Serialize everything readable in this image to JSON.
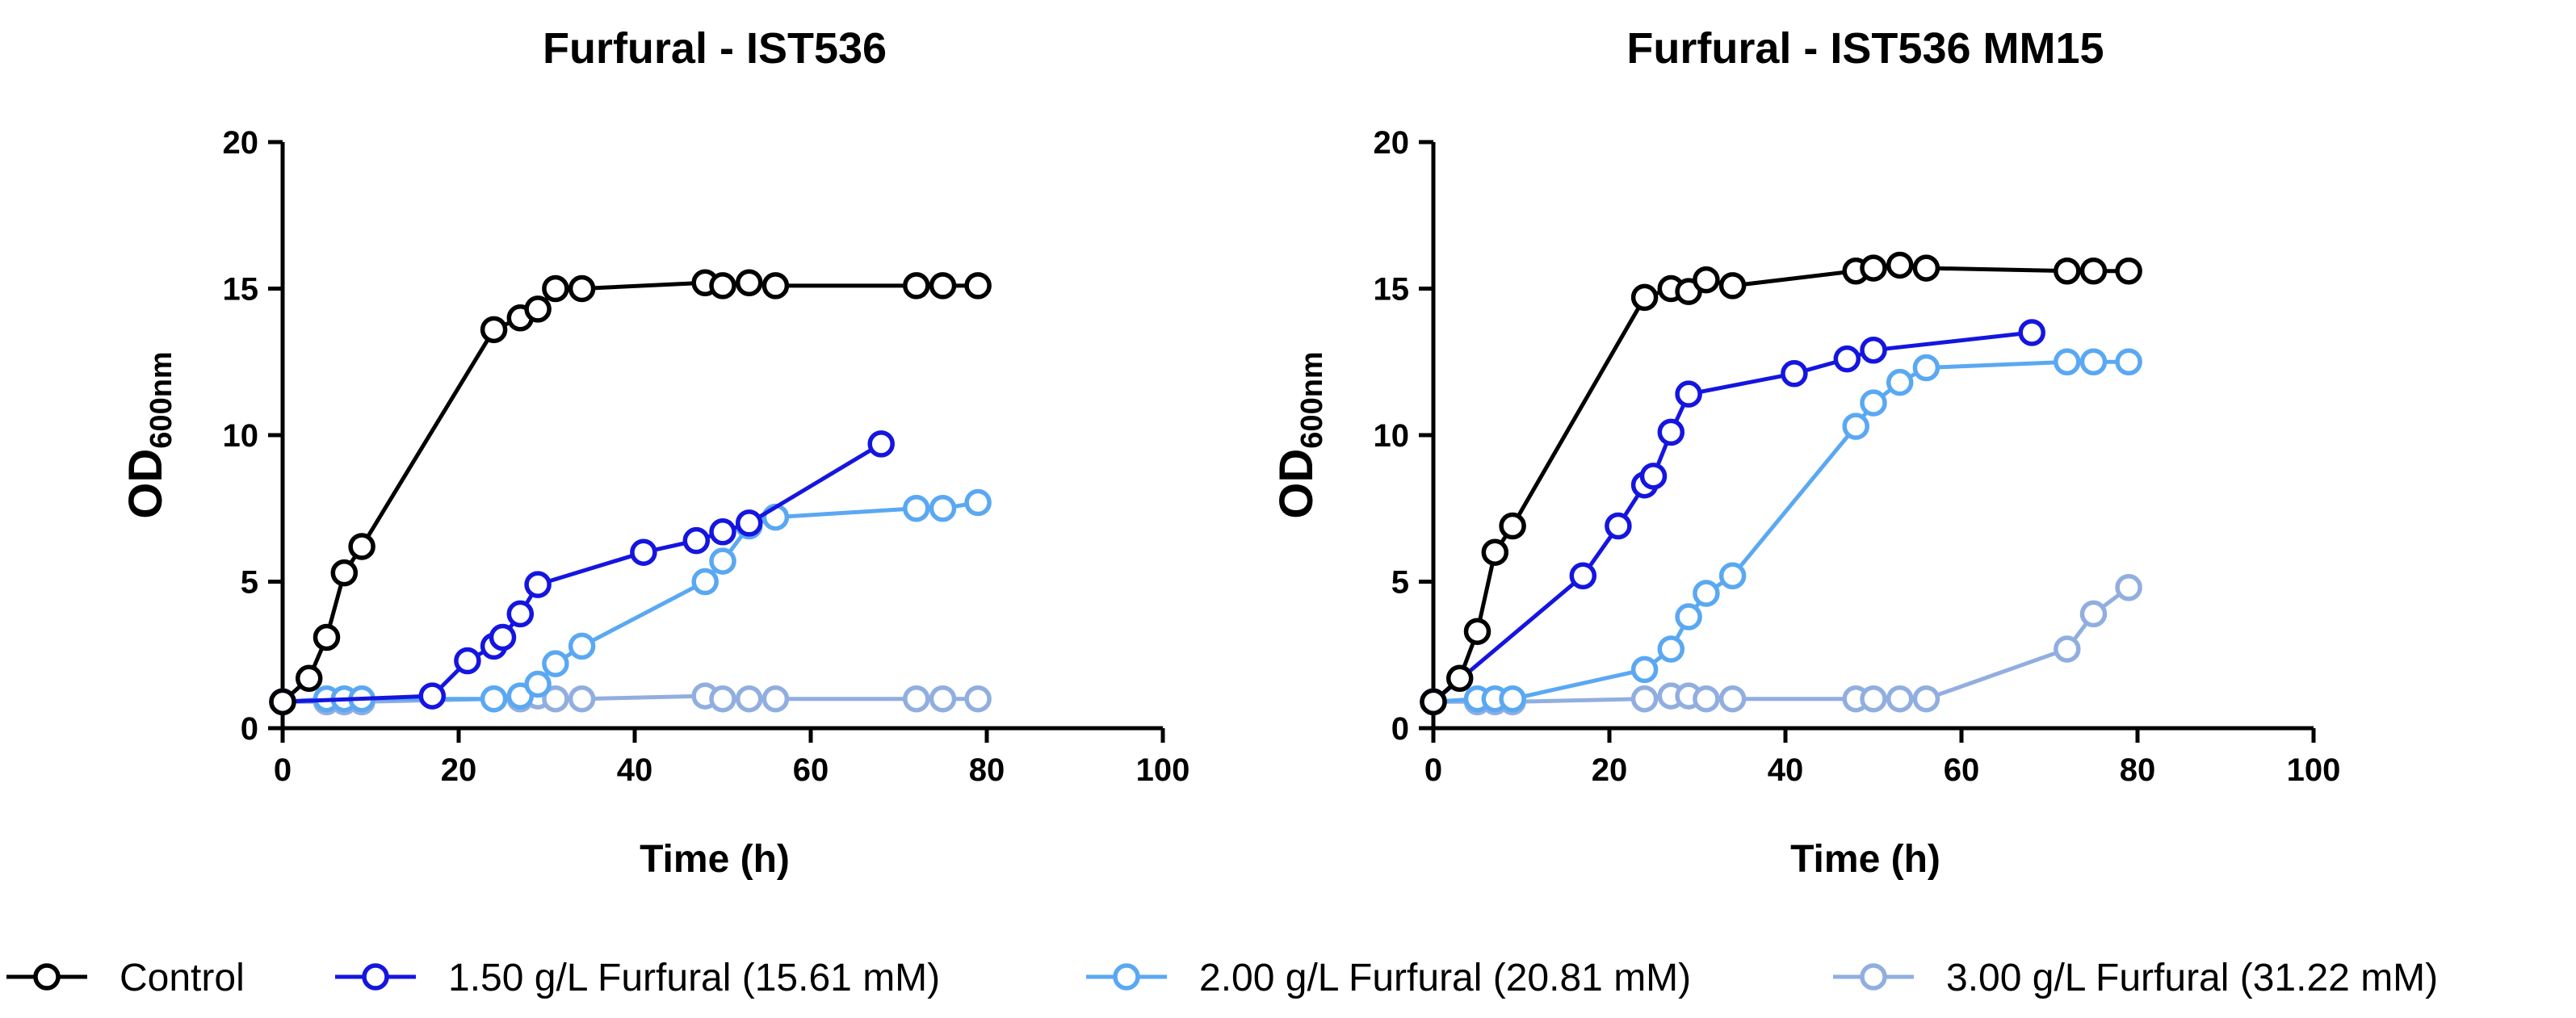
{
  "chart_data": [
    {
      "type": "line",
      "title": "Furfural - IST536",
      "xlabel": "Time (h)",
      "ylabel": {
        "main": "OD",
        "sub": "600nm"
      },
      "xlim": [
        0,
        100
      ],
      "ylim": [
        0,
        20
      ],
      "xticks": [
        0,
        20,
        40,
        60,
        80,
        100
      ],
      "yticks": [
        0,
        5,
        10,
        15,
        20
      ],
      "series": [
        {
          "name": "Control",
          "color": "#000000",
          "points": [
            [
              0,
              0.9
            ],
            [
              3,
              1.7
            ],
            [
              5,
              3.1
            ],
            [
              7,
              5.3
            ],
            [
              9,
              6.2
            ],
            [
              24,
              13.6
            ],
            [
              27,
              14.0
            ],
            [
              29,
              14.3
            ],
            [
              31,
              15.0
            ],
            [
              34,
              15.0
            ],
            [
              48,
              15.2
            ],
            [
              50,
              15.1
            ],
            [
              53,
              15.2
            ],
            [
              56,
              15.1
            ],
            [
              72,
              15.1
            ],
            [
              75,
              15.1
            ],
            [
              79,
              15.1
            ]
          ]
        },
        {
          "name": "1.50 g/L Furfural (15.61 mM)",
          "color": "#1515e0",
          "points": [
            [
              0,
              0.9
            ],
            [
              17,
              1.1
            ],
            [
              21,
              2.3
            ],
            [
              24,
              2.8
            ],
            [
              25,
              3.1
            ],
            [
              27,
              3.9
            ],
            [
              29,
              4.9
            ],
            [
              41,
              6.0
            ],
            [
              47,
              6.4
            ],
            [
              50,
              6.7
            ],
            [
              53,
              7.0
            ],
            [
              68,
              9.7
            ]
          ]
        },
        {
          "name": "2.00 g/L Furfural (20.81 mM)",
          "color": "#5aa8f2",
          "points": [
            [
              0,
              0.9
            ],
            [
              5,
              1.0
            ],
            [
              7,
              1.0
            ],
            [
              9,
              1.0
            ],
            [
              24,
              1.0
            ],
            [
              27,
              1.1
            ],
            [
              29,
              1.5
            ],
            [
              31,
              2.2
            ],
            [
              34,
              2.8
            ],
            [
              48,
              5.0
            ],
            [
              50,
              5.7
            ],
            [
              53,
              6.9
            ],
            [
              56,
              7.2
            ],
            [
              72,
              7.5
            ],
            [
              75,
              7.5
            ],
            [
              79,
              7.7
            ]
          ]
        },
        {
          "name": "3.00 g/L Furfural (31.22 mM)",
          "color": "#91aee0",
          "points": [
            [
              0,
              0.9
            ],
            [
              5,
              0.9
            ],
            [
              7,
              0.9
            ],
            [
              9,
              0.9
            ],
            [
              24,
              1.0
            ],
            [
              27,
              1.0
            ],
            [
              29,
              1.1
            ],
            [
              31,
              1.0
            ],
            [
              34,
              1.0
            ],
            [
              48,
              1.1
            ],
            [
              50,
              1.0
            ],
            [
              53,
              1.0
            ],
            [
              56,
              1.0
            ],
            [
              72,
              1.0
            ],
            [
              75,
              1.0
            ],
            [
              79,
              1.0
            ]
          ]
        }
      ]
    },
    {
      "type": "line",
      "title": "Furfural - IST536 MM15",
      "xlabel": "Time (h)",
      "ylabel": {
        "main": "OD",
        "sub": "600nm"
      },
      "xlim": [
        0,
        100
      ],
      "ylim": [
        0,
        20
      ],
      "xticks": [
        0,
        20,
        40,
        60,
        80,
        100
      ],
      "yticks": [
        0,
        5,
        10,
        15,
        20
      ],
      "series": [
        {
          "name": "Control",
          "color": "#000000",
          "points": [
            [
              0,
              0.9
            ],
            [
              3,
              1.7
            ],
            [
              5,
              3.3
            ],
            [
              7,
              6.0
            ],
            [
              9,
              6.9
            ],
            [
              24,
              14.7
            ],
            [
              27,
              15.0
            ],
            [
              29,
              14.9
            ],
            [
              31,
              15.3
            ],
            [
              34,
              15.1
            ],
            [
              48,
              15.6
            ],
            [
              50,
              15.7
            ],
            [
              53,
              15.8
            ],
            [
              56,
              15.7
            ],
            [
              72,
              15.6
            ],
            [
              75,
              15.6
            ],
            [
              79,
              15.6
            ]
          ]
        },
        {
          "name": "1.50 g/L Furfural (15.61 mM)",
          "color": "#1515e0",
          "points": [
            [
              0,
              0.9
            ],
            [
              17,
              5.2
            ],
            [
              21,
              6.9
            ],
            [
              24,
              8.3
            ],
            [
              25,
              8.6
            ],
            [
              27,
              10.1
            ],
            [
              29,
              11.4
            ],
            [
              41,
              12.1
            ],
            [
              47,
              12.6
            ],
            [
              50,
              12.9
            ],
            [
              68,
              13.5
            ]
          ]
        },
        {
          "name": "2.00 g/L Furfural (20.81 mM)",
          "color": "#5aa8f2",
          "points": [
            [
              0,
              0.9
            ],
            [
              5,
              1.0
            ],
            [
              7,
              1.0
            ],
            [
              9,
              1.0
            ],
            [
              24,
              2.0
            ],
            [
              27,
              2.7
            ],
            [
              29,
              3.8
            ],
            [
              31,
              4.6
            ],
            [
              34,
              5.2
            ],
            [
              48,
              10.3
            ],
            [
              50,
              11.1
            ],
            [
              53,
              11.8
            ],
            [
              56,
              12.3
            ],
            [
              72,
              12.5
            ],
            [
              75,
              12.5
            ],
            [
              79,
              12.5
            ]
          ]
        },
        {
          "name": "3.00 g/L Furfural (31.22 mM)",
          "color": "#91aee0",
          "points": [
            [
              0,
              0.9
            ],
            [
              5,
              0.9
            ],
            [
              7,
              0.9
            ],
            [
              9,
              0.9
            ],
            [
              24,
              1.0
            ],
            [
              27,
              1.1
            ],
            [
              29,
              1.1
            ],
            [
              31,
              1.0
            ],
            [
              34,
              1.0
            ],
            [
              48,
              1.0
            ],
            [
              50,
              1.0
            ],
            [
              53,
              1.0
            ],
            [
              56,
              1.0
            ],
            [
              72,
              2.7
            ],
            [
              75,
              3.9
            ],
            [
              79,
              4.8
            ]
          ]
        }
      ]
    }
  ],
  "legend": {
    "placement": "bottom",
    "items": [
      {
        "label": "Control",
        "color": "#000000"
      },
      {
        "label": "1.50 g/L Furfural (15.61 mM)",
        "color": "#1515e0"
      },
      {
        "label": "2.00 g/L Furfural (20.81 mM)",
        "color": "#5aa8f2"
      },
      {
        "label": "3.00 g/L Furfural (31.22 mM)",
        "color": "#91aee0"
      }
    ]
  }
}
